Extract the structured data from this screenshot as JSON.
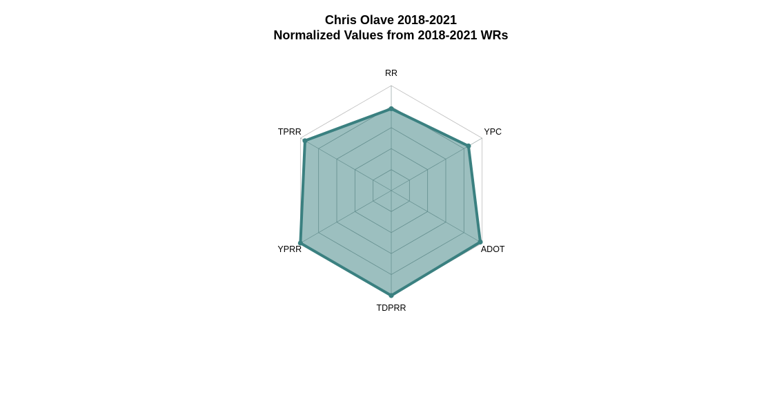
{
  "chart_data": {
    "type": "radar",
    "title": "Chris Olave 2018-2021",
    "subtitle": "Normalized Values from 2018-2021 WRs",
    "axes": [
      "RR",
      "YPC",
      "ADOT",
      "TDPRR",
      "YPRR",
      "TPRR"
    ],
    "range": [
      0,
      1
    ],
    "grid_levels": [
      0.2,
      0.4,
      0.6,
      0.8,
      1.0
    ],
    "series": [
      {
        "values": [
          0.78,
          0.85,
          0.98,
          1.0,
          1.0,
          0.95
        ]
      }
    ],
    "colors": {
      "line": "#3a8080",
      "fill": "#3a8080",
      "grid": "#8a9a9a",
      "outer_grid": "#bdbdbd"
    }
  }
}
